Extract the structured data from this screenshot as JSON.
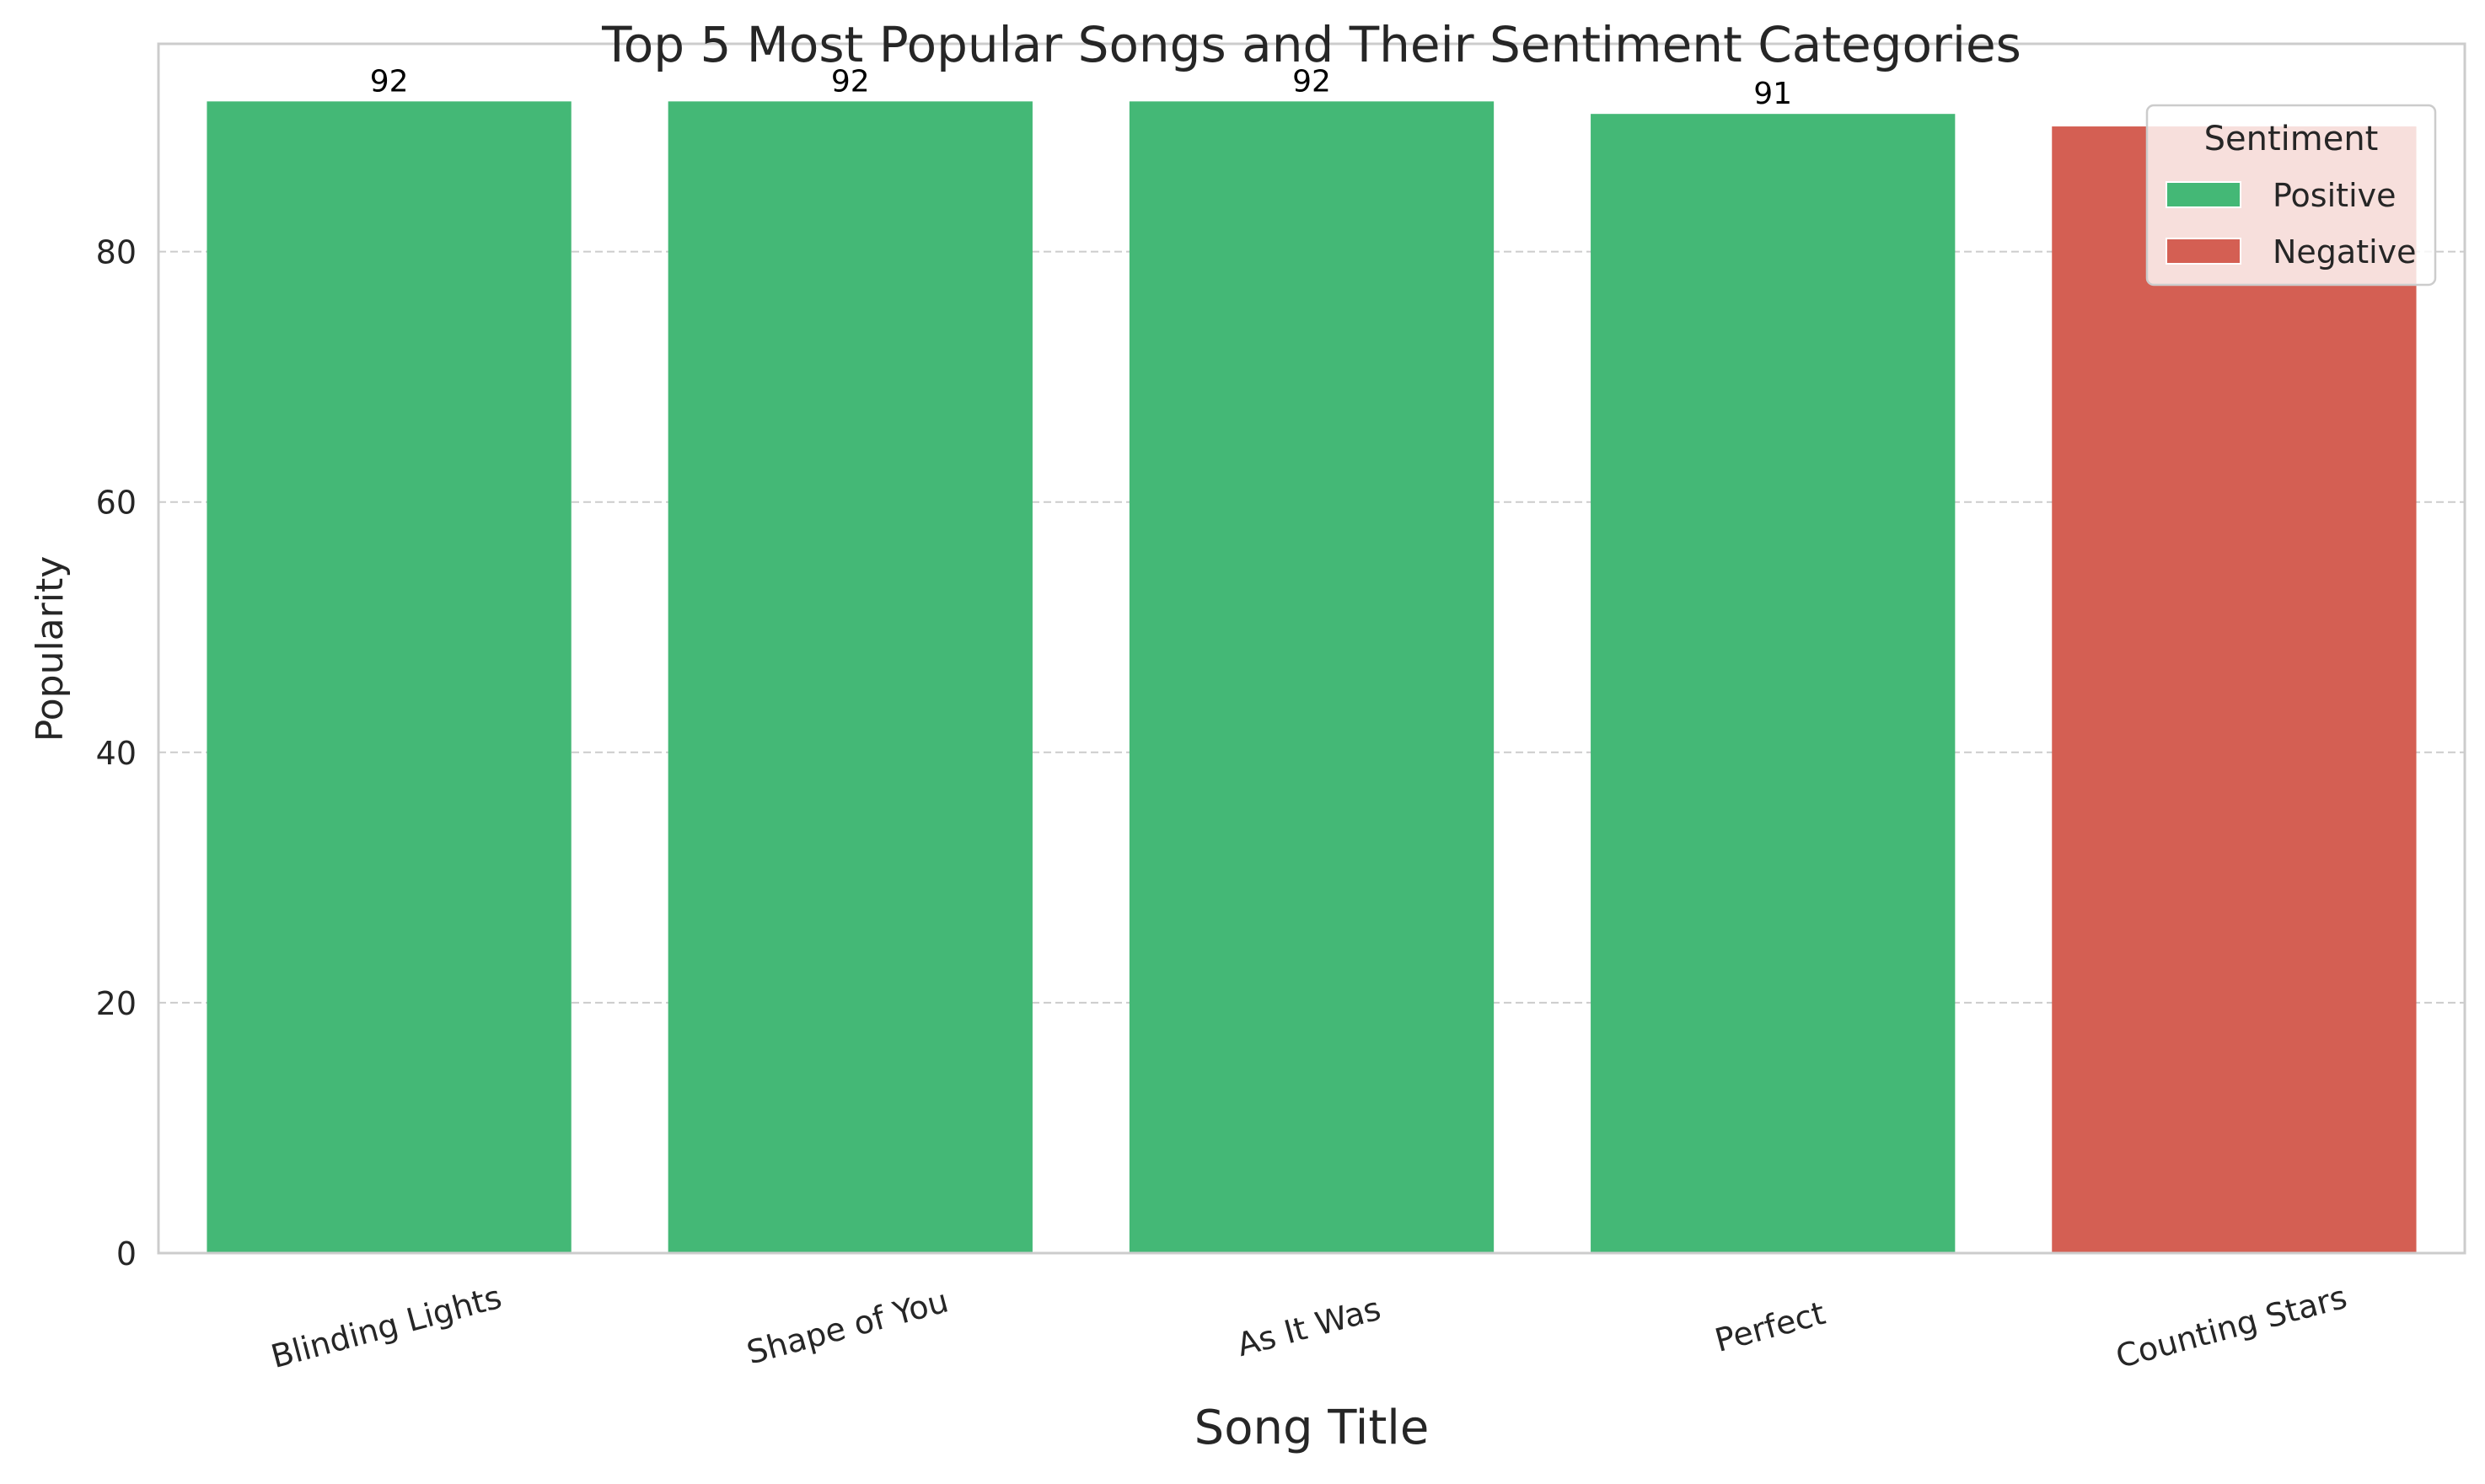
{
  "chart_data": {
    "type": "bar",
    "title": "Top 5 Most Popular Songs and Their Sentiment Categories",
    "xlabel": "Song Title",
    "ylabel": "Popularity",
    "categories": [
      "Blinding Lights",
      "Shape of You",
      "As It Was",
      "Perfect",
      "Counting Stars"
    ],
    "values": [
      92,
      92,
      92,
      91,
      90
    ],
    "sentiments": [
      "Positive",
      "Positive",
      "Positive",
      "Positive",
      "Negative"
    ],
    "data_labels": [
      "92",
      "92",
      "92",
      "91",
      ""
    ],
    "yticks": [
      0,
      20,
      40,
      60,
      80
    ],
    "ylim": [
      0,
      96.6
    ],
    "grid": "horizontal dashed",
    "legend": {
      "title": "Sentiment",
      "placement": "top-right",
      "entries": [
        {
          "label": "Positive",
          "color": "#44b876"
        },
        {
          "label": "Negative",
          "color": "#d45f53"
        }
      ]
    },
    "colors": {
      "Positive": "#44b876",
      "Negative": "#d45f53"
    }
  }
}
